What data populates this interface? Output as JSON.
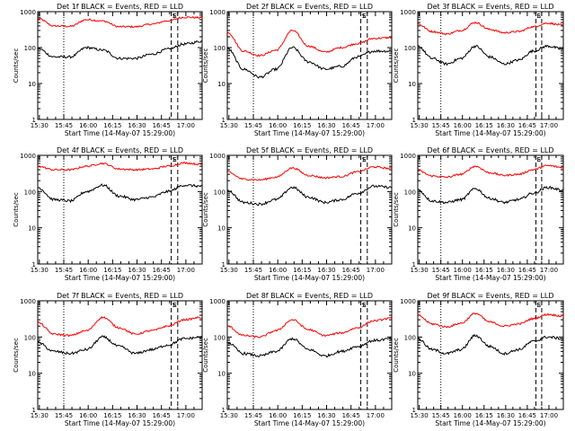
{
  "chart_data": {
    "type": "line",
    "layout": "3x3 grid",
    "scale": "log",
    "ylim": [
      1,
      1000
    ],
    "ylabel": "Counts/sec",
    "xlabel": "Start Time (14-May-07 15:29:00)",
    "x_tick_labels": [
      "15:30",
      "15:45",
      "16:00",
      "16:15",
      "16:30",
      "16:45",
      "17:00"
    ],
    "y_tick_labels": [
      "1",
      "10",
      "100",
      "1000"
    ],
    "x_axis_minutes_from_1529": {
      "range": [
        0,
        101
      ],
      "ticks": [
        1,
        16,
        31,
        46,
        61,
        76,
        91
      ],
      "dotted_line": 16,
      "dashed_lines": [
        82,
        86
      ]
    },
    "series_colors": {
      "events": "#000000",
      "lld": "#ff0000"
    },
    "markers": [
      "S",
      "E"
    ],
    "panels": [
      {
        "title": "Det 1f BLACK = Events, RED = LLD",
        "x": [
          0,
          10,
          20,
          30,
          40,
          50,
          60,
          70,
          80,
          90,
          101
        ],
        "events": [
          95,
          55,
          55,
          100,
          85,
          50,
          50,
          65,
          90,
          125,
          150
        ],
        "lld": [
          650,
          400,
          390,
          600,
          550,
          380,
          380,
          450,
          560,
          700,
          680
        ]
      },
      {
        "title": "Det 2f BLACK = Events, RED = LLD",
        "x": [
          0,
          10,
          20,
          30,
          40,
          50,
          60,
          70,
          80,
          90,
          101
        ],
        "events": [
          95,
          25,
          15,
          25,
          100,
          40,
          25,
          30,
          55,
          80,
          80
        ],
        "lld": [
          270,
          80,
          60,
          85,
          300,
          110,
          75,
          100,
          130,
          180,
          190
        ]
      },
      {
        "title": "Det 3f BLACK = Events, RED = LLD",
        "x": [
          0,
          10,
          20,
          30,
          40,
          50,
          60,
          70,
          80,
          90,
          101
        ],
        "events": [
          110,
          50,
          35,
          50,
          110,
          55,
          35,
          45,
          80,
          110,
          90
        ],
        "lld": [
          450,
          280,
          240,
          300,
          500,
          320,
          260,
          280,
          380,
          480,
          420
        ]
      },
      {
        "title": "Det 4f BLACK = Events, RED = LLD",
        "x": [
          0,
          10,
          20,
          30,
          40,
          50,
          60,
          70,
          80,
          90,
          101
        ],
        "events": [
          130,
          60,
          55,
          100,
          150,
          75,
          60,
          70,
          100,
          150,
          140
        ],
        "lld": [
          500,
          400,
          400,
          500,
          600,
          420,
          400,
          420,
          500,
          620,
          560
        ]
      },
      {
        "title": "Det 5f BLACK = Events, RED = LLD",
        "x": [
          0,
          10,
          20,
          30,
          40,
          50,
          60,
          70,
          80,
          90,
          101
        ],
        "events": [
          110,
          50,
          45,
          60,
          130,
          70,
          50,
          60,
          90,
          140,
          130
        ],
        "lld": [
          350,
          220,
          210,
          250,
          450,
          280,
          240,
          260,
          350,
          480,
          430
        ]
      },
      {
        "title": "Det 6f BLACK = Events, RED = LLD",
        "x": [
          0,
          10,
          20,
          30,
          40,
          50,
          60,
          70,
          80,
          90,
          101
        ],
        "events": [
          110,
          55,
          50,
          60,
          120,
          65,
          50,
          60,
          90,
          130,
          110
        ],
        "lld": [
          380,
          270,
          250,
          300,
          500,
          330,
          280,
          300,
          400,
          520,
          460
        ]
      },
      {
        "title": "Det 7f BLACK = Events, RED = LLD",
        "x": [
          0,
          10,
          20,
          30,
          40,
          50,
          60,
          70,
          80,
          90,
          101
        ],
        "events": [
          70,
          40,
          35,
          45,
          100,
          55,
          35,
          45,
          60,
          90,
          100
        ],
        "lld": [
          250,
          120,
          110,
          150,
          350,
          180,
          120,
          150,
          200,
          300,
          350
        ]
      },
      {
        "title": "Det 8f BLACK = Events, RED = LLD",
        "x": [
          0,
          10,
          20,
          30,
          40,
          50,
          60,
          70,
          80,
          90,
          101
        ],
        "events": [
          70,
          35,
          30,
          40,
          90,
          45,
          30,
          40,
          55,
          80,
          90
        ],
        "lld": [
          200,
          110,
          100,
          150,
          300,
          160,
          110,
          130,
          180,
          280,
          330
        ]
      },
      {
        "title": "Det 9f BLACK = Events, RED = LLD",
        "x": [
          0,
          10,
          20,
          30,
          40,
          50,
          60,
          70,
          80,
          90,
          101
        ],
        "events": [
          90,
          45,
          35,
          45,
          110,
          55,
          35,
          45,
          75,
          100,
          90
        ],
        "lld": [
          400,
          230,
          190,
          240,
          450,
          260,
          200,
          230,
          320,
          420,
          380
        ]
      }
    ]
  }
}
